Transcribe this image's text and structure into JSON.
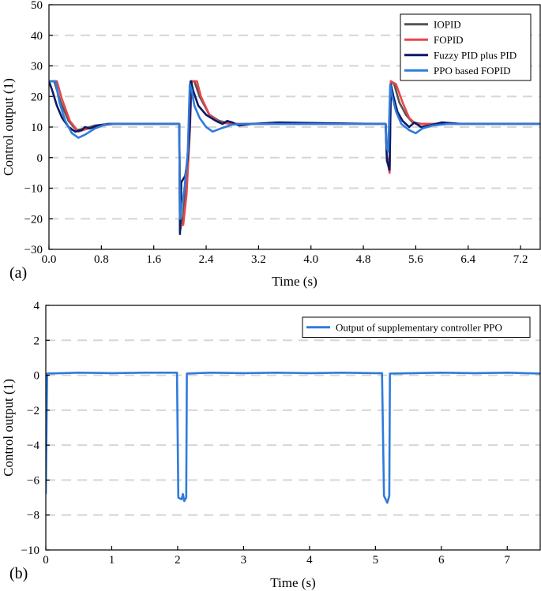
{
  "chart_data": [
    {
      "panel_label": "(a)",
      "type": "line",
      "xlabel": "Time (s)",
      "ylabel": "Control output (1)",
      "xlim": [
        0,
        7.5
      ],
      "ylim": [
        -30,
        50
      ],
      "xticks": [
        0.0,
        0.8,
        1.6,
        2.4,
        3.2,
        4.0,
        4.8,
        5.6,
        6.4,
        7.2
      ],
      "xtick_labels": [
        "0.0",
        "0.8",
        "1.6",
        "2.4",
        "3.2",
        "4.0",
        "4.8",
        "5.6",
        "6.4",
        "7.2"
      ],
      "yticks": [
        -30,
        -20,
        -10,
        0,
        10,
        20,
        30,
        40,
        50
      ],
      "ytick_labels": [
        "−30",
        "−20",
        "−10",
        "0",
        "10",
        "20",
        "30",
        "40",
        "50"
      ],
      "grid": "horizontal dashed",
      "legend_position": "top-right",
      "series": [
        {
          "name": "IOPID",
          "color": "#555555",
          "points": [
            [
              0,
              25
            ],
            [
              0.08,
              25
            ],
            [
              0.18,
              18
            ],
            [
              0.3,
              12
            ],
            [
              0.42,
              9
            ],
            [
              0.55,
              9.5
            ],
            [
              0.7,
              10.5
            ],
            [
              0.9,
              11
            ],
            [
              1.99,
              11
            ],
            [
              2.0,
              -24
            ],
            [
              2.04,
              -20
            ],
            [
              2.08,
              -12
            ],
            [
              2.13,
              5
            ],
            [
              2.16,
              25
            ],
            [
              2.22,
              25
            ],
            [
              2.3,
              20
            ],
            [
              2.45,
              14
            ],
            [
              2.6,
              12
            ],
            [
              2.8,
              11
            ],
            [
              3.0,
              11
            ],
            [
              5.14,
              11
            ],
            [
              5.16,
              0
            ],
            [
              5.2,
              -2
            ],
            [
              5.22,
              25
            ],
            [
              5.27,
              24
            ],
            [
              5.35,
              18
            ],
            [
              5.45,
              14
            ],
            [
              5.55,
              11.5
            ],
            [
              5.7,
              11
            ],
            [
              7.5,
              11
            ]
          ]
        },
        {
          "name": "FOPID",
          "color": "#e8474a",
          "points": [
            [
              0,
              25
            ],
            [
              0.12,
              25
            ],
            [
              0.2,
              19
            ],
            [
              0.32,
              12
            ],
            [
              0.45,
              8.5
            ],
            [
              0.6,
              9.5
            ],
            [
              0.8,
              10.5
            ],
            [
              1.0,
              11
            ],
            [
              1.99,
              11
            ],
            [
              2.0,
              -22
            ],
            [
              2.05,
              -22
            ],
            [
              2.1,
              -12
            ],
            [
              2.15,
              8
            ],
            [
              2.18,
              25
            ],
            [
              2.26,
              25
            ],
            [
              2.32,
              20
            ],
            [
              2.45,
              14
            ],
            [
              2.6,
              11.5
            ],
            [
              2.8,
              11
            ],
            [
              3.0,
              11
            ],
            [
              5.14,
              11
            ],
            [
              5.16,
              0
            ],
            [
              5.2,
              -5
            ],
            [
              5.22,
              25
            ],
            [
              5.3,
              24
            ],
            [
              5.4,
              18
            ],
            [
              5.5,
              13
            ],
            [
              5.6,
              11
            ],
            [
              5.75,
              11
            ],
            [
              7.5,
              11
            ]
          ]
        },
        {
          "name": "Fuzzy PID plus PID",
          "color": "#0b1a66",
          "points": [
            [
              0,
              25
            ],
            [
              0.05,
              22
            ],
            [
              0.12,
              17
            ],
            [
              0.2,
              13
            ],
            [
              0.3,
              10
            ],
            [
              0.4,
              8.5
            ],
            [
              0.5,
              9
            ],
            [
              0.55,
              10
            ],
            [
              0.62,
              9.5
            ],
            [
              0.75,
              10.5
            ],
            [
              0.9,
              11
            ],
            [
              1.99,
              11
            ],
            [
              2.0,
              -25
            ],
            [
              2.02,
              -8
            ],
            [
              2.08,
              -6
            ],
            [
              2.12,
              0
            ],
            [
              2.15,
              10
            ],
            [
              2.17,
              25
            ],
            [
              2.2,
              22
            ],
            [
              2.28,
              17
            ],
            [
              2.4,
              14
            ],
            [
              2.55,
              12
            ],
            [
              2.65,
              11
            ],
            [
              2.72,
              12
            ],
            [
              2.8,
              11.5
            ],
            [
              2.9,
              10.5
            ],
            [
              3.1,
              11
            ],
            [
              3.5,
              11.5
            ],
            [
              5.0,
              11
            ],
            [
              5.14,
              11
            ],
            [
              5.16,
              -1
            ],
            [
              5.2,
              -4
            ],
            [
              5.22,
              24
            ],
            [
              5.26,
              20
            ],
            [
              5.32,
              15
            ],
            [
              5.4,
              12
            ],
            [
              5.5,
              10
            ],
            [
              5.58,
              11.5
            ],
            [
              5.68,
              10
            ],
            [
              5.8,
              10.5
            ],
            [
              6.0,
              11.5
            ],
            [
              6.3,
              11
            ],
            [
              7.5,
              11
            ]
          ]
        },
        {
          "name": "PPO based  FOPID",
          "color": "#2f7bdb",
          "points": [
            [
              0,
              25
            ],
            [
              0.1,
              25
            ],
            [
              0.16,
              18
            ],
            [
              0.25,
              12
            ],
            [
              0.35,
              8
            ],
            [
              0.45,
              6.5
            ],
            [
              0.55,
              7.5
            ],
            [
              0.7,
              9.5
            ],
            [
              0.85,
              10.8
            ],
            [
              1.0,
              11
            ],
            [
              1.99,
              11
            ],
            [
              2.0,
              -20
            ],
            [
              2.03,
              -15
            ],
            [
              2.07,
              -10
            ],
            [
              2.12,
              2
            ],
            [
              2.15,
              24
            ],
            [
              2.18,
              22
            ],
            [
              2.22,
              17
            ],
            [
              2.3,
              13
            ],
            [
              2.4,
              10
            ],
            [
              2.5,
              8.5
            ],
            [
              2.62,
              9.5
            ],
            [
              2.8,
              10.8
            ],
            [
              3.0,
              11
            ],
            [
              5.14,
              11
            ],
            [
              5.16,
              3
            ],
            [
              5.18,
              2
            ],
            [
              5.21,
              24
            ],
            [
              5.24,
              20
            ],
            [
              5.3,
              15
            ],
            [
              5.38,
              11
            ],
            [
              5.5,
              9
            ],
            [
              5.6,
              8
            ],
            [
              5.7,
              9.5
            ],
            [
              5.85,
              10.5
            ],
            [
              6.1,
              11
            ],
            [
              7.5,
              11
            ]
          ]
        }
      ]
    },
    {
      "panel_label": "(b)",
      "type": "line",
      "xlabel": "Time (s)",
      "ylabel": "Control output (1)",
      "xlim": [
        0,
        7.5
      ],
      "ylim": [
        -10,
        4
      ],
      "xticks": [
        0,
        1,
        2,
        3,
        4,
        5,
        6,
        7
      ],
      "xtick_labels": [
        "0",
        "1",
        "2",
        "3",
        "4",
        "5",
        "6",
        "7"
      ],
      "yticks": [
        -10,
        -8,
        -6,
        -4,
        -2,
        0,
        2,
        4
      ],
      "ytick_labels": [
        "−10",
        "−8",
        "−6",
        "−4",
        "−2",
        "0",
        "2",
        "4"
      ],
      "grid": "horizontal dashed",
      "legend_position": "top-right",
      "series": [
        {
          "name": "Output of supplementary controller PPO",
          "color": "#2f7bdb",
          "points": [
            [
              0,
              -6.8
            ],
            [
              0.02,
              0.1
            ],
            [
              0.5,
              0.15
            ],
            [
              1.0,
              0.12
            ],
            [
              1.5,
              0.15
            ],
            [
              1.99,
              0.15
            ],
            [
              2.01,
              -7.0
            ],
            [
              2.06,
              -7.1
            ],
            [
              2.08,
              -6.8
            ],
            [
              2.1,
              -7.2
            ],
            [
              2.13,
              -7.0
            ],
            [
              2.14,
              0.1
            ],
            [
              2.5,
              0.15
            ],
            [
              3.0,
              0.12
            ],
            [
              3.5,
              0.15
            ],
            [
              4.0,
              0.12
            ],
            [
              4.5,
              0.15
            ],
            [
              5.0,
              0.12
            ],
            [
              5.1,
              0.12
            ],
            [
              5.13,
              -6.9
            ],
            [
              5.18,
              -7.3
            ],
            [
              5.21,
              -6.9
            ],
            [
              5.22,
              0.1
            ],
            [
              6.0,
              0.15
            ],
            [
              6.5,
              0.12
            ],
            [
              7.0,
              0.15
            ],
            [
              7.5,
              0.1
            ]
          ]
        }
      ]
    }
  ]
}
